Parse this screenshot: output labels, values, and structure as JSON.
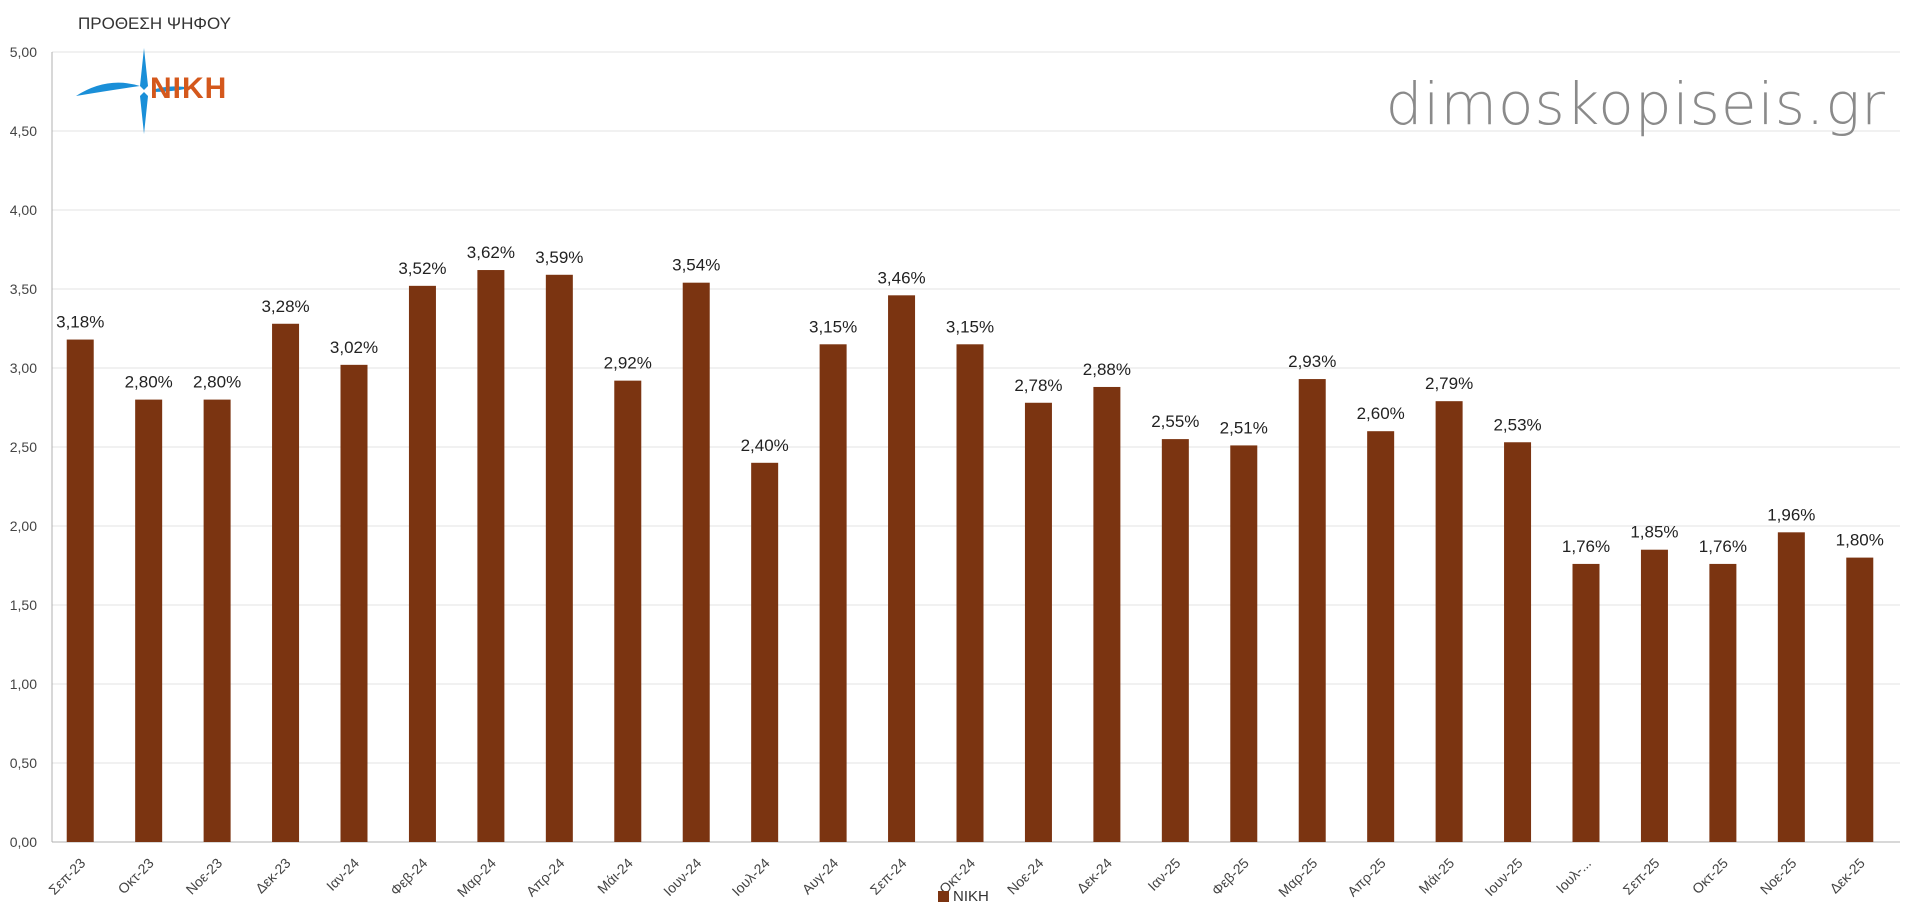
{
  "header": {
    "ylabel": "ΠΡΟΘΕΣΗ ΨΗΦΟΥ",
    "watermark": "dimoskopiseis.gr",
    "logo_text": "NIKH"
  },
  "colors": {
    "bar": "#7b3411",
    "grid": "#e3e3e3",
    "axis": "#b0b0b0",
    "logo_blue": "#1a8fd8",
    "logo_orange": "#d4581c"
  },
  "chart_data": {
    "type": "bar",
    "categories": [
      "Σεπ-23",
      "Οκτ-23",
      "Νοε-23",
      "Δεκ-23",
      "Ιαν-24",
      "Φεβ-24",
      "Μαρ-24",
      "Απρ-24",
      "Μάι-24",
      "Ιουν-24",
      "Ιουλ-24",
      "Αυγ-24",
      "Σεπ-24",
      "Οκτ-24",
      "Νοε-24",
      "Δεκ-24",
      "Ιαν-25",
      "Φεβ-25",
      "Μαρ-25",
      "Απρ-25",
      "Μάι-25",
      "Ιουν-25",
      "Ιουλ-...",
      "Σεπ-25",
      "Οκτ-25",
      "Νοε-25",
      "Δεκ-25"
    ],
    "series": [
      {
        "name": "NIKH",
        "values": [
          3.18,
          2.8,
          2.8,
          3.28,
          3.02,
          3.52,
          3.62,
          3.59,
          2.92,
          3.54,
          2.4,
          3.15,
          3.46,
          3.15,
          2.78,
          2.88,
          2.55,
          2.51,
          2.93,
          2.6,
          2.79,
          2.53,
          1.76,
          1.85,
          1.76,
          1.96,
          1.8
        ],
        "labels": [
          "3,18%",
          "2,80%",
          "2,80%",
          "3,28%",
          "3,02%",
          "3,52%",
          "3,62%",
          "3,59%",
          "2,92%",
          "3,54%",
          "2,40%",
          "3,15%",
          "3,46%",
          "3,15%",
          "2,78%",
          "2,88%",
          "2,55%",
          "2,51%",
          "2,93%",
          "2,60%",
          "2,79%",
          "2,53%",
          "1,76%",
          "1,85%",
          "1,76%",
          "1,96%",
          "1,80%"
        ]
      }
    ],
    "y_ticks": [
      "0,00",
      "0,50",
      "1,00",
      "1,50",
      "2,00",
      "2,50",
      "3,00",
      "3,50",
      "4,00",
      "4,50",
      "5,00"
    ],
    "ylim": [
      0,
      5
    ],
    "grid": true,
    "legend": "bottom"
  }
}
